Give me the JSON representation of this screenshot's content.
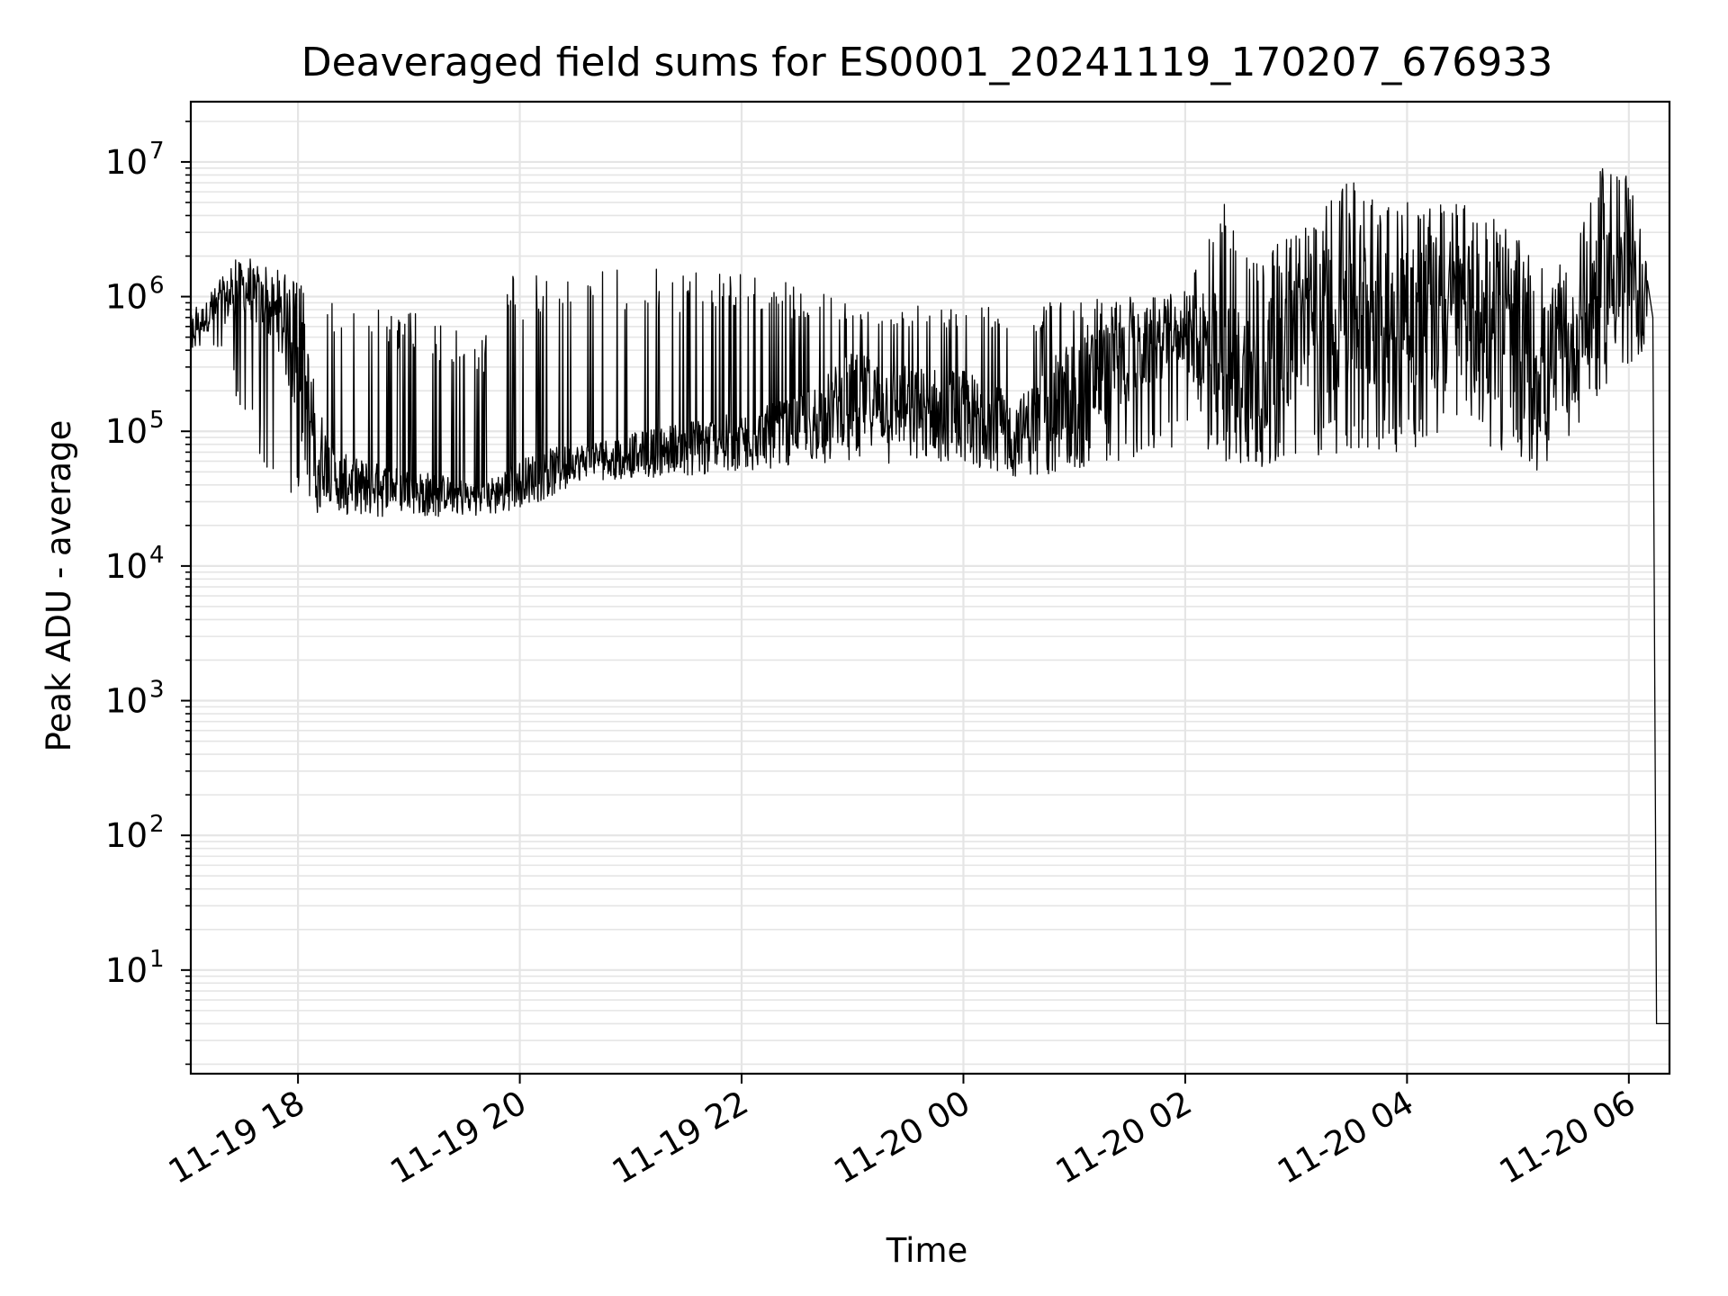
{
  "chart_data": {
    "type": "line",
    "title": "Deaveraged field sums for ES0001_20241119_170207_676933",
    "xlabel": "Time",
    "ylabel": "Peak ADU - average",
    "yscale": "log",
    "ylim": [
      1.7,
      28000000
    ],
    "xlim": [
      "2024-11-19 17:02",
      "2024-11-20 06:22"
    ],
    "grid": true,
    "line_color": "#000000",
    "grid_color": "#e5e5e5",
    "x_ticks": [
      {
        "value": "2024-11-19 18:00",
        "label": "11-19 18"
      },
      {
        "value": "2024-11-19 20:00",
        "label": "11-19 20"
      },
      {
        "value": "2024-11-19 22:00",
        "label": "11-19 22"
      },
      {
        "value": "2024-11-20 00:00",
        "label": "11-20 00"
      },
      {
        "value": "2024-11-20 02:00",
        "label": "11-20 02"
      },
      {
        "value": "2024-11-20 04:00",
        "label": "11-20 04"
      },
      {
        "value": "2024-11-20 06:00",
        "label": "11-20 06"
      }
    ],
    "y_ticks": [
      {
        "value": 10,
        "base": "10",
        "exp": "1"
      },
      {
        "value": 100,
        "base": "10",
        "exp": "2"
      },
      {
        "value": 1000,
        "base": "10",
        "exp": "3"
      },
      {
        "value": 10000,
        "base": "10",
        "exp": "4"
      },
      {
        "value": 100000,
        "base": "10",
        "exp": "5"
      },
      {
        "value": 1000000,
        "base": "10",
        "exp": "6"
      },
      {
        "value": 10000000,
        "base": "10",
        "exp": "7"
      }
    ],
    "series": [
      {
        "x": [
          "2024-11-19 17:02",
          "2024-11-19 17:10",
          "2024-11-19 17:20",
          "2024-11-19 17:30",
          "2024-11-19 17:40",
          "2024-11-19 17:50",
          "2024-11-19 18:00",
          "2024-11-19 18:10",
          "2024-11-19 18:20",
          "2024-11-19 18:40",
          "2024-11-19 19:00",
          "2024-11-19 19:20",
          "2024-11-19 19:40",
          "2024-11-19 19:55",
          "2024-11-19 20:10",
          "2024-11-19 20:30",
          "2024-11-19 21:00",
          "2024-11-19 21:30",
          "2024-11-19 22:00",
          "2024-11-19 22:30",
          "2024-11-19 23:00",
          "2024-11-19 23:30",
          "2024-11-20 00:00",
          "2024-11-20 00:30",
          "2024-11-20 01:00",
          "2024-11-20 01:30",
          "2024-11-20 02:00",
          "2024-11-20 02:20",
          "2024-11-20 02:40",
          "2024-11-20 03:00",
          "2024-11-20 03:30",
          "2024-11-20 04:00",
          "2024-11-20 04:30",
          "2024-11-20 05:00",
          "2024-11-20 05:15",
          "2024-11-20 05:30",
          "2024-11-20 05:45",
          "2024-11-20 06:00",
          "2024-11-20 06:10",
          "2024-11-20 06:13",
          "2024-11-20 06:15",
          "2024-11-20 06:22"
        ],
        "y": [
          550000,
          700000,
          900000,
          1200000,
          900000,
          700000,
          300000,
          80000,
          45000,
          40000,
          38000,
          35000,
          33000,
          40000,
          50000,
          60000,
          70000,
          80000,
          90000,
          110000,
          180000,
          150000,
          140000,
          100000,
          200000,
          350000,
          550000,
          300000,
          250000,
          600000,
          900000,
          800000,
          700000,
          500000,
          250000,
          400000,
          1500000,
          1200000,
          1000000,
          700000,
          4,
          4
        ],
        "lo": [
          380000,
          450000,
          350000,
          120000,
          60000,
          40000,
          30000,
          25000,
          24000,
          23000,
          24000,
          23000,
          24000,
          25000,
          30000,
          40000,
          45000,
          45000,
          50000,
          55000,
          60000,
          55000,
          50000,
          45000,
          50000,
          60000,
          80000,
          60000,
          50000,
          60000,
          70000,
          70000,
          100000,
          60000,
          40000,
          100000,
          200000,
          300000,
          400000,
          500000,
          4,
          4
        ],
        "hi": [
          800000,
          1000000,
          1500000,
          2200000,
          1800000,
          1600000,
          1300000,
          900000,
          1000000,
          900000,
          800000,
          600000,
          500000,
          1500000,
          1500000,
          1500000,
          1600000,
          1600000,
          1600000,
          1200000,
          900000,
          900000,
          900000,
          800000,
          1000000,
          1000000,
          1100000,
          5500000,
          2000000,
          3000000,
          8000000,
          5000000,
          5000000,
          3000000,
          1500000,
          2000000,
          13000000,
          8000000,
          3000000,
          1500000,
          4,
          4
        ]
      }
    ]
  }
}
